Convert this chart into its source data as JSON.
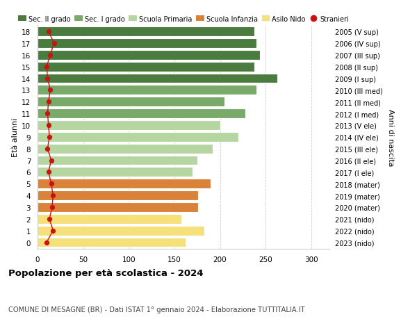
{
  "ages": [
    18,
    17,
    16,
    15,
    14,
    13,
    12,
    11,
    10,
    9,
    8,
    7,
    6,
    5,
    4,
    3,
    2,
    1,
    0
  ],
  "values": [
    238,
    240,
    244,
    238,
    263,
    240,
    205,
    228,
    200,
    220,
    192,
    175,
    170,
    190,
    176,
    176,
    158,
    183,
    162
  ],
  "stranieri": [
    12,
    18,
    14,
    10,
    11,
    14,
    12,
    11,
    12,
    13,
    11,
    15,
    12,
    15,
    17,
    16,
    13,
    17,
    10
  ],
  "right_labels": [
    "2005 (V sup)",
    "2006 (IV sup)",
    "2007 (III sup)",
    "2008 (II sup)",
    "2009 (I sup)",
    "2010 (III med)",
    "2011 (II med)",
    "2012 (I med)",
    "2013 (V ele)",
    "2014 (IV ele)",
    "2015 (III ele)",
    "2016 (II ele)",
    "2017 (I ele)",
    "2018 (mater)",
    "2019 (mater)",
    "2020 (mater)",
    "2021 (nido)",
    "2022 (nido)",
    "2023 (nido)"
  ],
  "bar_colors": [
    "#4a7c3f",
    "#4a7c3f",
    "#4a7c3f",
    "#4a7c3f",
    "#4a7c3f",
    "#7aaa6a",
    "#7aaa6a",
    "#7aaa6a",
    "#b5d6a0",
    "#b5d6a0",
    "#b5d6a0",
    "#b5d6a0",
    "#b5d6a0",
    "#d9833a",
    "#d9833a",
    "#d9833a",
    "#f5e07a",
    "#f5e07a",
    "#f5e07a"
  ],
  "legend_labels": [
    "Sec. II grado",
    "Sec. I grado",
    "Scuola Primaria",
    "Scuola Infanzia",
    "Asilo Nido",
    "Stranieri"
  ],
  "legend_colors": [
    "#4a7c3f",
    "#7aaa6a",
    "#b5d6a0",
    "#d9833a",
    "#f5e07a",
    "#cc1111"
  ],
  "stranieri_color": "#cc1111",
  "title": "Popolazione per età scolastica - 2024",
  "subtitle": "COMUNE DI MESAGNE (BR) - Dati ISTAT 1° gennaio 2024 - Elaborazione TUTTITALIA.IT",
  "ylabel": "Età alunni",
  "right_ylabel": "Anni di nascita",
  "xlim": [
    0,
    320
  ],
  "xticks": [
    0,
    50,
    100,
    150,
    200,
    250,
    300
  ],
  "background_color": "#ffffff",
  "bar_edgecolor": "#ffffff",
  "grid_color": "#cccccc"
}
